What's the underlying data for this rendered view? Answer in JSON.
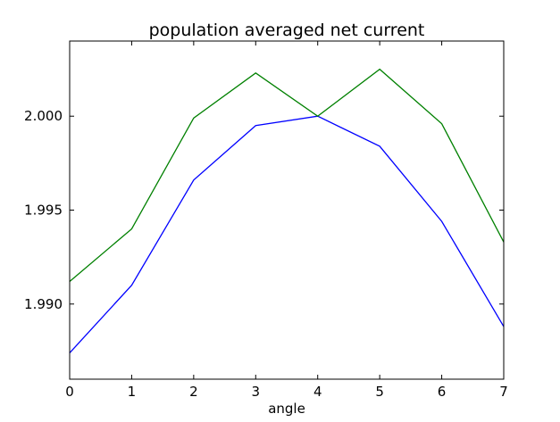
{
  "chart_data": {
    "type": "line",
    "title": "population averaged net current",
    "xlabel": "angle",
    "ylabel": "",
    "xlim": [
      0,
      7
    ],
    "ylim": [
      1.986,
      2.004
    ],
    "xticks": [
      "0",
      "1",
      "2",
      "3",
      "4",
      "5",
      "6",
      "7"
    ],
    "yticks": [
      "1.990",
      "1.995",
      "2.000"
    ],
    "grid": false,
    "x": [
      0,
      1,
      2,
      3,
      4,
      5,
      6,
      7
    ],
    "series": [
      {
        "color": "#0000ff",
        "values": [
          1.9874,
          1.991,
          1.9966,
          1.9995,
          2.0,
          1.9984,
          1.9944,
          1.9888
        ]
      },
      {
        "color": "#008000",
        "values": [
          1.9912,
          1.994,
          1.9999,
          2.0023,
          2.0,
          2.0025,
          1.9996,
          1.9933
        ]
      }
    ]
  }
}
